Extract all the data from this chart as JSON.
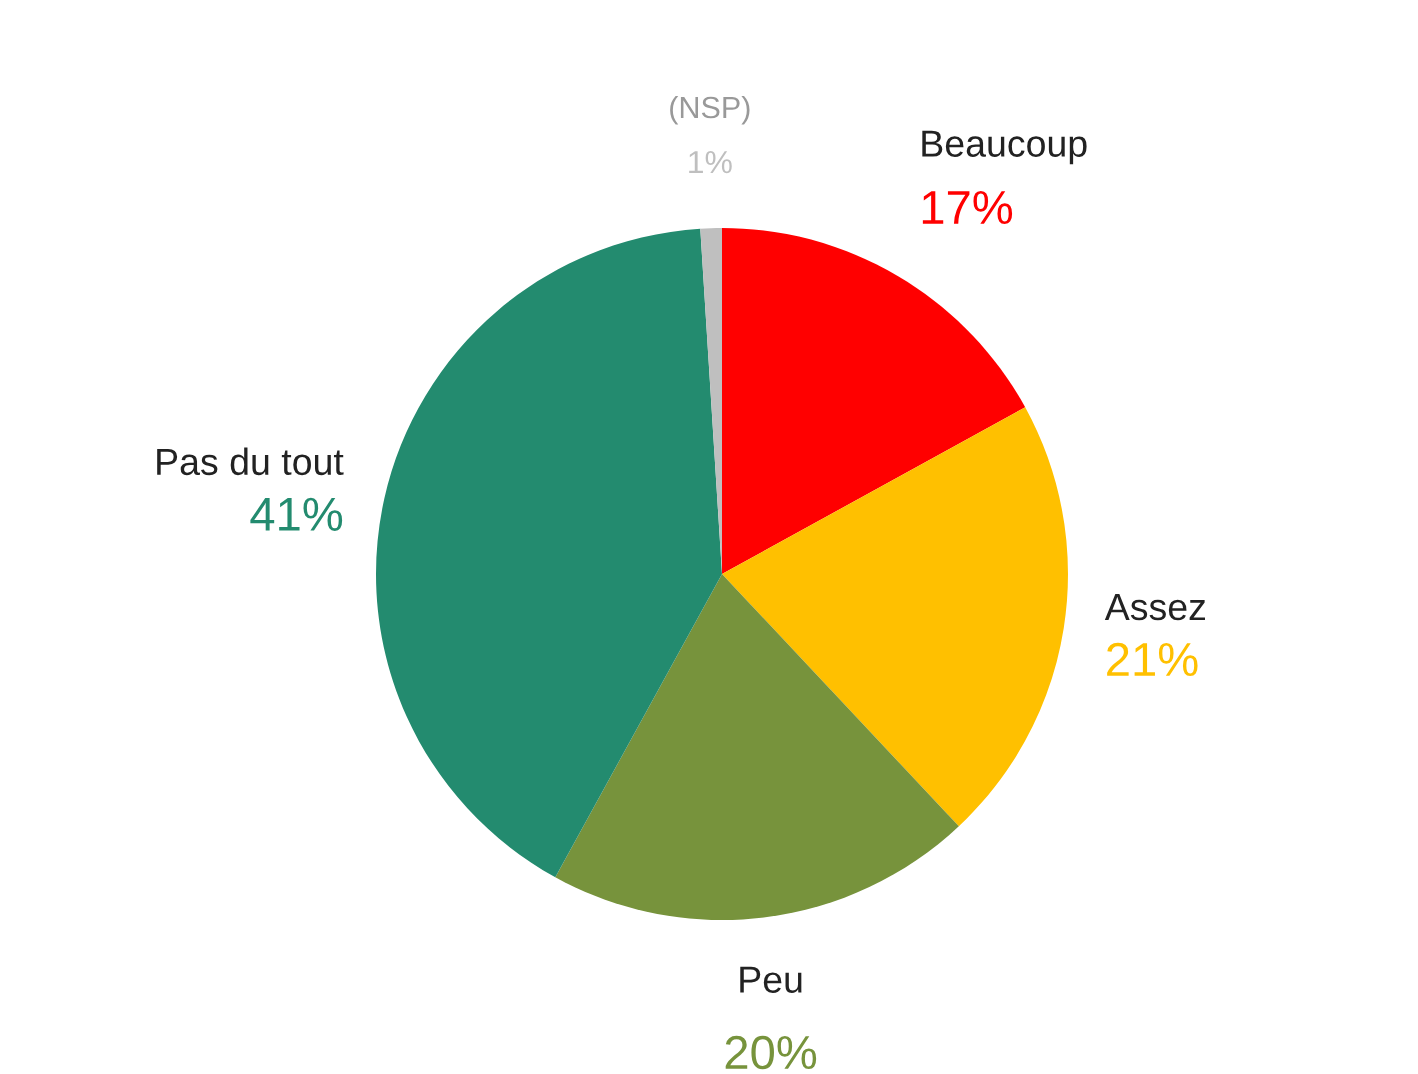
{
  "chart_data": {
    "type": "pie",
    "categories": [
      "Beaucoup",
      "Assez",
      "Peu",
      "Pas du tout",
      "(NSP)"
    ],
    "values": [
      17,
      21,
      20,
      41,
      1
    ],
    "value_labels": [
      "17%",
      "21%",
      "20%",
      "41%",
      "1%"
    ],
    "colors": [
      "#ff0000",
      "#ffc000",
      "#77933c",
      "#238b6f",
      "#bfbfbf"
    ]
  }
}
